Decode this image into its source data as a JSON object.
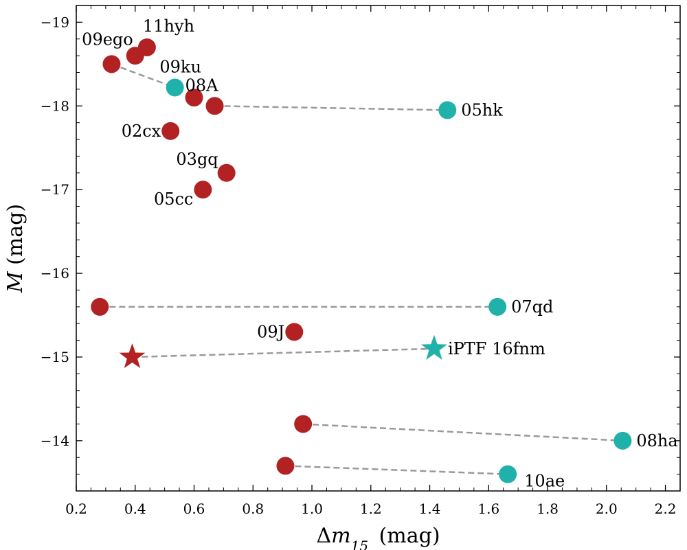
{
  "chart_data": {
    "type": "scatter",
    "xlabel": "Δm15 (mag)",
    "ylabel": "M (mag)",
    "xlim": [
      0.2,
      2.25
    ],
    "ylim": [
      -19.2,
      -13.4
    ],
    "y_inverted": true,
    "x_ticks": [
      0.2,
      0.4,
      0.6,
      0.8,
      1.0,
      1.2,
      1.4,
      1.6,
      1.8,
      2.0,
      2.2
    ],
    "x_tick_labels": [
      "0.2",
      "0.4",
      "0.6",
      "0.8",
      "1.0",
      "1.2",
      "1.4",
      "1.6",
      "1.8",
      "2.0",
      "2.2"
    ],
    "y_ticks": [
      -19,
      -18,
      -17,
      -16,
      -15,
      -14
    ],
    "y_tick_labels": [
      "−19",
      "−18",
      "−17",
      "−16",
      "−15",
      "−14"
    ],
    "grid": false,
    "colors": {
      "red": "#b22222",
      "teal": "#20b2aa",
      "connector": "#999999"
    },
    "points": [
      {
        "id": "p-11hyh",
        "x": 0.44,
        "y": -18.7,
        "color": "red",
        "marker": "circle",
        "label": "11hyh",
        "label_pos": "above-right"
      },
      {
        "id": "p-09ego-a",
        "x": 0.4,
        "y": -18.6,
        "color": "red",
        "marker": "circle",
        "label": "",
        "label_pos": ""
      },
      {
        "id": "p-09ego-b",
        "x": 0.32,
        "y": -18.5,
        "color": "red",
        "marker": "circle",
        "label": "09ego",
        "label_pos": "above"
      },
      {
        "id": "p-09ku",
        "x": 0.535,
        "y": -18.22,
        "color": "teal",
        "marker": "circle",
        "label": "09ku",
        "label_pos": "above"
      },
      {
        "id": "p-08A-a",
        "x": 0.6,
        "y": -18.1,
        "color": "red",
        "marker": "circle",
        "label": "",
        "label_pos": ""
      },
      {
        "id": "p-08A-b",
        "x": 0.67,
        "y": -18.0,
        "color": "red",
        "marker": "circle",
        "label": "08A",
        "label_pos": "above"
      },
      {
        "id": "p-05hk",
        "x": 1.46,
        "y": -17.95,
        "color": "teal",
        "marker": "circle",
        "label": "05hk",
        "label_pos": "right"
      },
      {
        "id": "p-02cx",
        "x": 0.52,
        "y": -17.7,
        "color": "red",
        "marker": "circle",
        "label": "02cx",
        "label_pos": "left"
      },
      {
        "id": "p-03gq",
        "x": 0.71,
        "y": -17.2,
        "color": "red",
        "marker": "circle",
        "label": "03gq",
        "label_pos": "above-left"
      },
      {
        "id": "p-05cc",
        "x": 0.63,
        "y": -17.0,
        "color": "red",
        "marker": "circle",
        "label": "05cc",
        "label_pos": "below-left"
      },
      {
        "id": "p-07qd-a",
        "x": 0.28,
        "y": -15.6,
        "color": "red",
        "marker": "circle",
        "label": "",
        "label_pos": ""
      },
      {
        "id": "p-07qd-b",
        "x": 1.63,
        "y": -15.6,
        "color": "teal",
        "marker": "circle",
        "label": "07qd",
        "label_pos": "right"
      },
      {
        "id": "p-09J",
        "x": 0.94,
        "y": -15.3,
        "color": "red",
        "marker": "circle",
        "label": "09J",
        "label_pos": "left"
      },
      {
        "id": "p-16fnm-a",
        "x": 0.39,
        "y": -15.0,
        "color": "red",
        "marker": "star",
        "label": "",
        "label_pos": ""
      },
      {
        "id": "p-16fnm-b",
        "x": 1.415,
        "y": -15.1,
        "color": "teal",
        "marker": "star",
        "label": "iPTF 16fnm",
        "label_pos": "right"
      },
      {
        "id": "p-08ha-a",
        "x": 0.97,
        "y": -14.2,
        "color": "red",
        "marker": "circle",
        "label": "",
        "label_pos": ""
      },
      {
        "id": "p-08ha-b",
        "x": 2.055,
        "y": -14.0,
        "color": "teal",
        "marker": "circle",
        "label": "08ha",
        "label_pos": "right"
      },
      {
        "id": "p-10ae-a",
        "x": 0.91,
        "y": -13.7,
        "color": "red",
        "marker": "circle",
        "label": "",
        "label_pos": ""
      },
      {
        "id": "p-10ae-b",
        "x": 1.665,
        "y": -13.6,
        "color": "teal",
        "marker": "circle",
        "label": "10ae",
        "label_pos": "right-below"
      }
    ],
    "connectors": [
      {
        "from": "p-09ego-b",
        "to": "p-09ku"
      },
      {
        "from": "p-08A-b",
        "to": "p-05hk"
      },
      {
        "from": "p-07qd-a",
        "to": "p-07qd-b"
      },
      {
        "from": "p-16fnm-a",
        "to": "p-16fnm-b"
      },
      {
        "from": "p-08ha-a",
        "to": "p-08ha-b"
      },
      {
        "from": "p-10ae-a",
        "to": "p-10ae-b"
      }
    ]
  }
}
